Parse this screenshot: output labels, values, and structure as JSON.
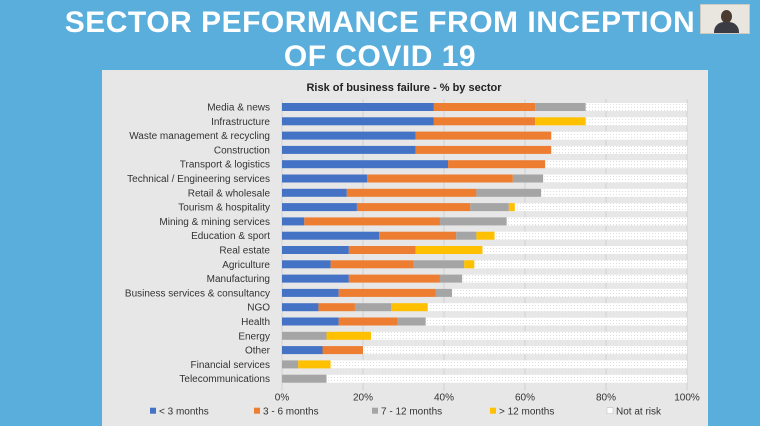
{
  "slide": {
    "title": "SECTOR PEFORMANCE FROM INCEPTION OF COVID 19"
  },
  "colors": {
    "background": "#5aaedc",
    "lt3": "#4472c4",
    "m3to6": "#ed7d31",
    "m7to12": "#a5a5a5",
    "gt12": "#ffc000",
    "notAtRisk": "#ffffff"
  },
  "chart_data": {
    "type": "bar",
    "orientation": "horizontal-stacked",
    "title": "Risk of business failure - % by sector",
    "xlim": [
      0,
      100
    ],
    "x_ticks": [
      "0%",
      "20%",
      "40%",
      "60%",
      "80%",
      "100%"
    ],
    "categories": [
      "Media & news",
      "Infrastructure",
      "Waste management & recycling",
      "Construction",
      "Transport & logistics",
      "Technical / Engineering services",
      "Retail & wholesale",
      "Tourism & hospitality",
      "Mining & mining services",
      "Education & sport",
      "Real estate",
      "Agriculture",
      "Manufacturing",
      "Business services & consultancy",
      "NGO",
      "Health",
      "Energy",
      "Other",
      "Financial services",
      "Telecommunications"
    ],
    "series": [
      {
        "name": "< 3 months",
        "color": "#4472c4",
        "values": [
          37.5,
          37.5,
          33,
          33,
          41,
          21,
          16,
          18.5,
          5.5,
          24,
          16.5,
          12,
          16.5,
          14,
          9,
          14,
          0,
          10,
          0,
          0
        ]
      },
      {
        "name": "3 - 6 months",
        "color": "#ed7d31",
        "values": [
          25,
          25,
          33.5,
          33.5,
          24,
          36,
          32,
          28,
          33.5,
          19,
          16.5,
          20.5,
          22.5,
          24,
          9,
          14.5,
          0,
          10,
          0,
          0
        ]
      },
      {
        "name": "7 - 12 months",
        "color": "#a5a5a5",
        "values": [
          12.5,
          0,
          0,
          0,
          0,
          7.5,
          16,
          9.5,
          16.5,
          5,
          0,
          12.5,
          5.5,
          4,
          9,
          7,
          11,
          0,
          4,
          11
        ]
      },
      {
        "name": "> 12 months",
        "color": "#ffc000",
        "values": [
          0,
          12.5,
          0,
          0,
          0,
          0,
          0,
          1.5,
          0,
          4.5,
          16.5,
          2.5,
          0,
          0,
          9,
          0,
          11,
          0,
          8,
          0
        ]
      },
      {
        "name": "Not at risk",
        "color": "#ffffff",
        "values": [
          25,
          25,
          33.5,
          33.5,
          35,
          35.5,
          36,
          42.5,
          44.5,
          47.5,
          50.5,
          52.5,
          55.5,
          58,
          64,
          64.5,
          78,
          80,
          88,
          89
        ]
      }
    ],
    "legend": "bottom",
    "grid": true
  }
}
